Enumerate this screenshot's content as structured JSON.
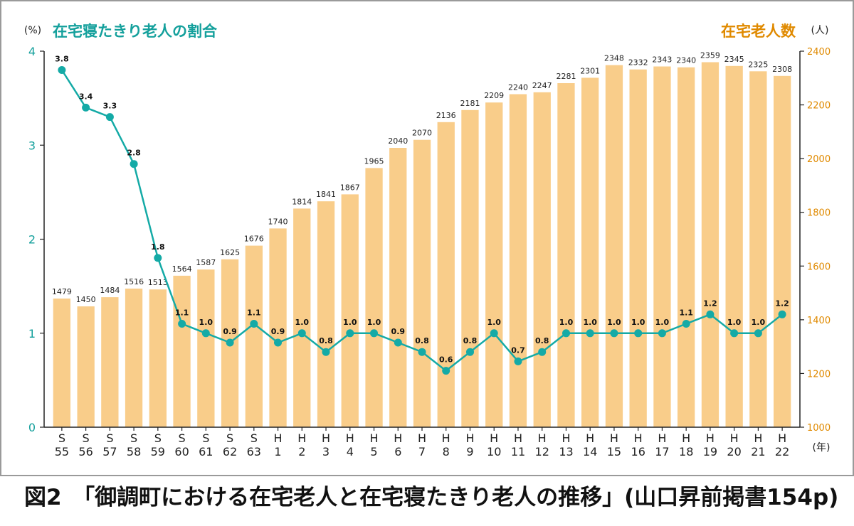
{
  "caption": "図2　「御調町における在宅老人と在宅寝たきり老人の推移」(山口昇前掲書154p)",
  "colors": {
    "bar": "#f9cd8a",
    "line": "#14aaa6",
    "left_axis": "#14a09c",
    "right_axis": "#e08a00"
  },
  "chart_data": {
    "type": "bar",
    "left_title": "在宅寝たきり老人の割合",
    "right_title": "在宅老人数",
    "left_unit": "(%)",
    "right_unit": "(人)",
    "x_unit": "(年)",
    "left_ticks": [
      "0",
      "1",
      "2",
      "3",
      "4"
    ],
    "right_ticks": [
      "1000",
      "1200",
      "1400",
      "1600",
      "1800",
      "2000",
      "2200",
      "2400"
    ],
    "left_ylim": [
      0,
      4
    ],
    "right_ylim": [
      1000,
      2400
    ],
    "categories": [
      {
        "era": "S",
        "year": "55"
      },
      {
        "era": "S",
        "year": "56"
      },
      {
        "era": "S",
        "year": "57"
      },
      {
        "era": "S",
        "year": "58"
      },
      {
        "era": "S",
        "year": "59"
      },
      {
        "era": "S",
        "year": "60"
      },
      {
        "era": "S",
        "year": "61"
      },
      {
        "era": "S",
        "year": "62"
      },
      {
        "era": "S",
        "year": "63"
      },
      {
        "era": "H",
        "year": "1"
      },
      {
        "era": "H",
        "year": "2"
      },
      {
        "era": "H",
        "year": "3"
      },
      {
        "era": "H",
        "year": "4"
      },
      {
        "era": "H",
        "year": "5"
      },
      {
        "era": "H",
        "year": "6"
      },
      {
        "era": "H",
        "year": "7"
      },
      {
        "era": "H",
        "year": "8"
      },
      {
        "era": "H",
        "year": "9"
      },
      {
        "era": "H",
        "year": "10"
      },
      {
        "era": "H",
        "year": "11"
      },
      {
        "era": "H",
        "year": "12"
      },
      {
        "era": "H",
        "year": "13"
      },
      {
        "era": "H",
        "year": "14"
      },
      {
        "era": "H",
        "year": "15"
      },
      {
        "era": "H",
        "year": "16"
      },
      {
        "era": "H",
        "year": "17"
      },
      {
        "era": "H",
        "year": "18"
      },
      {
        "era": "H",
        "year": "19"
      },
      {
        "era": "H",
        "year": "20"
      },
      {
        "era": "H",
        "year": "21"
      },
      {
        "era": "H",
        "year": "22"
      }
    ],
    "series": [
      {
        "name": "在宅老人数",
        "type": "bar",
        "axis": "right",
        "values": [
          1479,
          1450,
          1484,
          1516,
          1513,
          1564,
          1587,
          1625,
          1676,
          1740,
          1814,
          1841,
          1867,
          1965,
          2040,
          2070,
          2136,
          2181,
          2209,
          2240,
          2247,
          2281,
          2301,
          2348,
          2332,
          2343,
          2340,
          2359,
          2345,
          2325,
          2308
        ],
        "labels": [
          "1479",
          "1450",
          "1484",
          "1516",
          "1513",
          "1564",
          "1587",
          "1625",
          "1676",
          "1740",
          "1814",
          "1841",
          "1867",
          "1965",
          "2040",
          "2070",
          "2136",
          "2181",
          "2209",
          "2240",
          "2247",
          "2281",
          "2301",
          "2348",
          "2332",
          "2343",
          "2340",
          "2359",
          "2345",
          "2325",
          "2308"
        ]
      },
      {
        "name": "在宅寝たきり老人の割合",
        "type": "line",
        "axis": "left",
        "values": [
          3.8,
          3.4,
          3.3,
          2.8,
          1.8,
          1.1,
          1.0,
          0.9,
          1.1,
          0.9,
          1.0,
          0.8,
          1.0,
          1.0,
          0.9,
          0.8,
          0.6,
          0.8,
          1.0,
          0.7,
          0.8,
          1.0,
          1.0,
          1.0,
          1.0,
          1.0,
          1.1,
          1.2,
          1.0,
          1.0,
          1.2
        ],
        "labels": [
          "3.8",
          "3.4",
          "3.3",
          "2.8",
          "1.8",
          "1.1",
          "1.0",
          "0.9",
          "1.1",
          "0.9",
          "1.0",
          "0.8",
          "1.0",
          "1.0",
          "0.9",
          "0.8",
          "0.6",
          "0.8",
          "1.0",
          "0.7",
          "0.8",
          "1.0",
          "1.0",
          "1.0",
          "1.0",
          "1.0",
          "1.1",
          "1.2",
          "1.0",
          "1.0",
          "1.2"
        ]
      }
    ]
  }
}
